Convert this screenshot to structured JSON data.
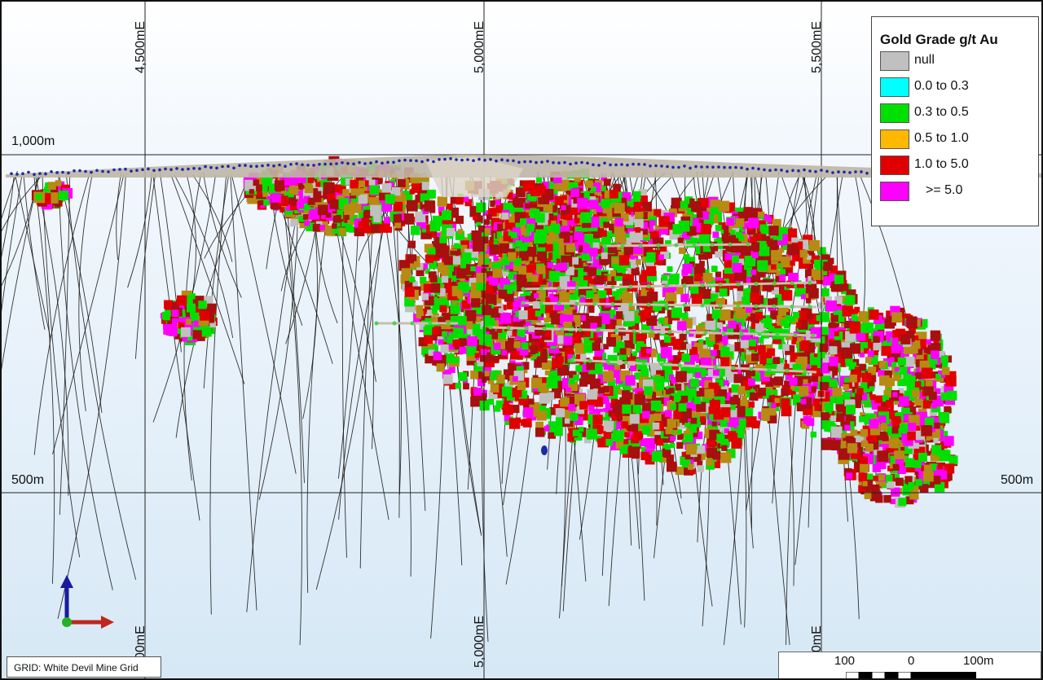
{
  "map": {
    "grid_label": "GRID: White Devil Mine Grid",
    "easting_labels_top": [
      "4,500mE",
      "5,000mE",
      "5,500mE"
    ],
    "easting_labels_bottom": [
      "00mE",
      "5,000mE",
      "00mE"
    ],
    "elevation_labels": {
      "upper": "1,000m",
      "lower_left": "500m",
      "lower_right": "500m"
    }
  },
  "legend": {
    "title": "Gold Grade g/t Au",
    "items": [
      {
        "label": "null",
        "color": "#c0c0c0"
      },
      {
        "label": "0.0 to 0.3",
        "color": "#00ffff"
      },
      {
        "label": "0.3 to 0.5",
        "color": "#00e000"
      },
      {
        "label": "0.5 to 1.0",
        "color": "#ffb800"
      },
      {
        "label": "1.0 to 5.0",
        "color": "#e00000"
      },
      {
        "label": ">= 5.0",
        "color": "#ff00ff"
      }
    ]
  },
  "scale_bar": {
    "labels": [
      "100",
      "0",
      "100m"
    ]
  },
  "colors": {
    "drillhole": "#111111",
    "collar": "#1a2aa8",
    "surface": "#bfb5a5",
    "grid": "#222222"
  },
  "axis_indicator": {
    "up": "blue-arrow",
    "right": "red-arrow",
    "origin": "green-dot"
  }
}
